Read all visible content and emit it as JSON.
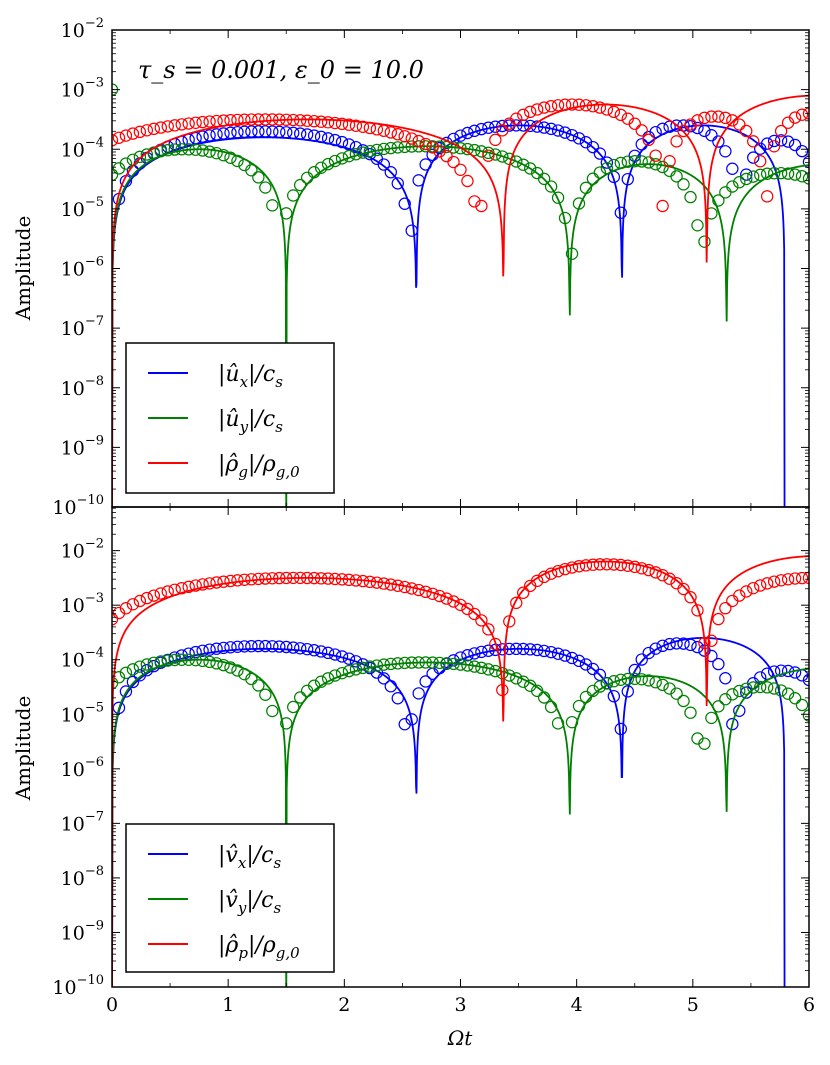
{
  "chart_data": [
    {
      "type": "line",
      "annotation": "τ_s = 0.001, ε_0 = 10.0",
      "xlabel": "",
      "ylabel": "Amplitude",
      "xlim": [
        0,
        6
      ],
      "ylim_log10": [
        -10,
        -2
      ],
      "yscale": "log",
      "y_ticks": [
        {
          "exp": -2,
          "base": "10",
          "sup": "−2"
        },
        {
          "exp": -3,
          "base": "10",
          "sup": "−3"
        },
        {
          "exp": -4,
          "base": "10",
          "sup": "−4"
        },
        {
          "exp": -5,
          "base": "10",
          "sup": "−5"
        },
        {
          "exp": -6,
          "base": "10",
          "sup": "−6"
        },
        {
          "exp": -7,
          "base": "10",
          "sup": "−7"
        },
        {
          "exp": -8,
          "base": "10",
          "sup": "−8"
        },
        {
          "exp": -9,
          "base": "10",
          "sup": "−9"
        },
        {
          "exp": -10,
          "base": "10",
          "sup": "−10"
        }
      ],
      "legend_position": "lower-left",
      "series": [
        {
          "name": "|û_x|/c_s",
          "legend_parts": [
            "|û",
            "x",
            "|/c",
            "s"
          ],
          "color": "#0000ff",
          "zeros": [
            0,
            2.62,
            4.39,
            5.79
          ],
          "arches": [
            [
              0,
              2.62,
              -3.8
            ],
            [
              2.62,
              4.39,
              -3.6
            ],
            [
              4.39,
              5.79,
              -3.6
            ]
          ],
          "marker_zeros": [
            0,
            2.57,
            4.4,
            5.4
          ],
          "marker_arches": [
            [
              0,
              2.57,
              -3.7
            ],
            [
              2.57,
              4.4,
              -3.6
            ],
            [
              4.4,
              5.4,
              -3.6
            ],
            [
              5.4,
              6.1,
              -3.85
            ]
          ]
        },
        {
          "name": "|û_y|/c_s",
          "legend_parts": [
            "|û",
            "y",
            "|/c",
            "s"
          ],
          "color": "#008000",
          "zeros": [
            1.5,
            3.94,
            5.29
          ],
          "arches": [
            [
              0,
              1.5,
              -4.0
            ],
            [
              1.5,
              3.94,
              -3.95
            ],
            [
              3.94,
              5.29,
              -4.25
            ],
            [
              5.29,
              7.0,
              -4.25
            ]
          ],
          "marker_zeros": [
            1.44,
            3.95,
            5.07
          ],
          "marker_arches": [
            [
              -0.2,
              1.44,
              -4.0
            ],
            [
              1.44,
              3.95,
              -3.95
            ],
            [
              3.95,
              5.07,
              -4.2
            ],
            [
              5.07,
              6.4,
              -4.4
            ]
          ],
          "extra_points": [
            [
              0,
              -3.0
            ]
          ]
        },
        {
          "name": "|ρ̂_g|/ρ_g,0",
          "legend_parts": [
            "|ρ̂",
            "g",
            "|/ρ",
            "g,0"
          ],
          "color": "#ff0000",
          "zeros": [
            0,
            3.37,
            5.12
          ],
          "arches": [
            [
              0,
              3.37,
              -3.5
            ],
            [
              3.37,
              5.12,
              -3.25
            ],
            [
              5.12,
              7.0,
              -3.1
            ]
          ],
          "marker_zeros": [
            3.17,
            4.75,
            5.63
          ],
          "marker_arches": [
            [
              -0.55,
              3.17,
              -3.5
            ],
            [
              3.17,
              4.75,
              -3.25
            ],
            [
              4.75,
              5.63,
              -3.45
            ],
            [
              5.63,
              6.4,
              -3.4
            ]
          ]
        }
      ]
    },
    {
      "type": "line",
      "xlabel": "Ωt",
      "ylabel": "Amplitude",
      "xlim": [
        0,
        6
      ],
      "x_ticks": [
        "0",
        "1",
        "2",
        "3",
        "4",
        "5",
        "6"
      ],
      "ylim_log10": [
        -10,
        -1.2
      ],
      "yscale": "log",
      "y_ticks": [
        {
          "exp": -2,
          "base": "10",
          "sup": "−2"
        },
        {
          "exp": -3,
          "base": "10",
          "sup": "−3"
        },
        {
          "exp": -4,
          "base": "10",
          "sup": "−4"
        },
        {
          "exp": -5,
          "base": "10",
          "sup": "−5"
        },
        {
          "exp": -6,
          "base": "10",
          "sup": "−6"
        },
        {
          "exp": -7,
          "base": "10",
          "sup": "−7"
        },
        {
          "exp": -8,
          "base": "10",
          "sup": "−8"
        },
        {
          "exp": -9,
          "base": "10",
          "sup": "−9"
        },
        {
          "exp": -10,
          "base": "10",
          "sup": "−10"
        }
      ],
      "legend_position": "lower-left",
      "series": [
        {
          "name": "|v̂_x|/c_s",
          "legend_parts": [
            "|v̂",
            "x",
            "|/c",
            "s"
          ],
          "color": "#0000ff",
          "zeros": [
            0,
            2.62,
            4.39,
            5.79
          ],
          "arches": [
            [
              0,
              2.62,
              -3.8
            ],
            [
              2.62,
              4.39,
              -3.8
            ],
            [
              4.39,
              5.79,
              -3.6
            ]
          ],
          "marker_zeros": [
            0,
            2.55,
            4.4,
            5.35
          ],
          "marker_arches": [
            [
              0,
              2.55,
              -3.75
            ],
            [
              2.55,
              4.4,
              -3.8
            ],
            [
              4.4,
              5.35,
              -3.7
            ],
            [
              5.35,
              6.2,
              -4.2
            ]
          ]
        },
        {
          "name": "|v̂_y|/c_s",
          "legend_parts": [
            "|v̂",
            "y",
            "|/c",
            "s"
          ],
          "color": "#008000",
          "zeros": [
            1.5,
            3.94,
            5.29
          ],
          "arches": [
            [
              0,
              1.5,
              -4.0
            ],
            [
              1.5,
              3.94,
              -4.05
            ],
            [
              3.94,
              5.29,
              -4.3
            ],
            [
              5.29,
              7.0,
              -4.15
            ]
          ],
          "marker_zeros": [
            1.44,
            3.9,
            5.07
          ],
          "marker_arches": [
            [
              -0.2,
              1.44,
              -4.0
            ],
            [
              1.44,
              3.9,
              -4.05
            ],
            [
              3.9,
              5.07,
              -4.35
            ],
            [
              5.07,
              6.1,
              -4.5
            ]
          ]
        },
        {
          "name": "|ρ̂_p|/ρ_g,0",
          "legend_parts": [
            "|ρ̂",
            "p",
            "|/ρ",
            "g,0"
          ],
          "color": "#ff0000",
          "zeros": [
            0,
            3.37,
            5.12
          ],
          "arches": [
            [
              0,
              3.37,
              -2.5
            ],
            [
              3.37,
              5.12,
              -2.2
            ],
            [
              5.12,
              7.0,
              -2.1
            ]
          ],
          "marker_zeros": [
            3.37,
            5.12
          ],
          "marker_arches": [
            [
              -0.2,
              3.37,
              -2.5
            ],
            [
              3.37,
              5.12,
              -2.25
            ],
            [
              5.12,
              6.9,
              -2.5
            ]
          ]
        }
      ]
    }
  ]
}
